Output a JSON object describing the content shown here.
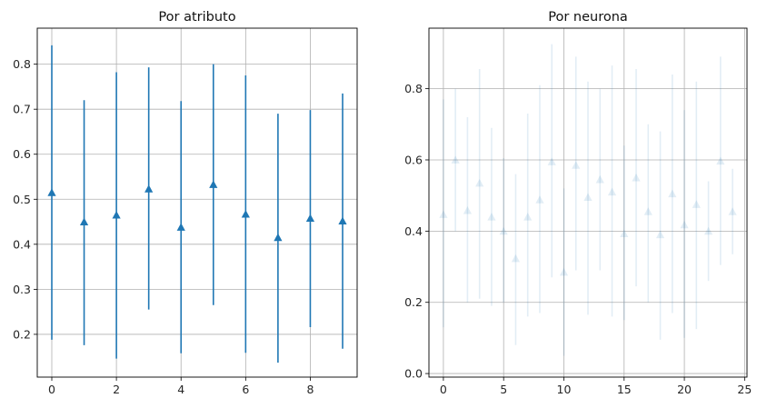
{
  "chart_data": [
    {
      "type": "errorbar",
      "title": "Por atributo",
      "xlabel": "",
      "ylabel": "",
      "xlim": [
        -0.45,
        9.45
      ],
      "ylim": [
        0.105,
        0.88
      ],
      "xticks": [
        0,
        2,
        4,
        6,
        8
      ],
      "yticks": [
        0.2,
        0.3,
        0.4,
        0.5,
        0.6,
        0.7,
        0.8
      ],
      "grid": true,
      "marker": "triangle-up",
      "color": "#1f77b4",
      "alpha": 1.0,
      "x": [
        0,
        1,
        2,
        3,
        4,
        5,
        6,
        7,
        8,
        9
      ],
      "y": [
        0.515,
        0.45,
        0.465,
        0.523,
        0.438,
        0.533,
        0.467,
        0.415,
        0.458,
        0.452
      ],
      "err_low": [
        0.188,
        0.176,
        0.146,
        0.255,
        0.158,
        0.265,
        0.159,
        0.137,
        0.216,
        0.168
      ],
      "err_high": [
        0.842,
        0.72,
        0.782,
        0.793,
        0.718,
        0.8,
        0.775,
        0.69,
        0.698,
        0.735
      ]
    },
    {
      "type": "errorbar",
      "title": "Por neurona",
      "xlabel": "",
      "ylabel": "",
      "xlim": [
        -1.2,
        25.2
      ],
      "ylim": [
        -0.01,
        0.97
      ],
      "xticks": [
        0,
        5,
        10,
        15,
        20,
        25
      ],
      "yticks": [
        0.0,
        0.2,
        0.4,
        0.6,
        0.8
      ],
      "grid": true,
      "marker": "triangle-up",
      "color": "#1f77b4",
      "alpha": 0.13,
      "x": [
        0,
        1,
        2,
        3,
        4,
        5,
        6,
        7,
        8,
        9,
        10,
        11,
        12,
        13,
        14,
        15,
        16,
        17,
        18,
        19,
        20,
        21,
        22,
        23,
        24
      ],
      "y": [
        0.447,
        0.6,
        0.458,
        0.535,
        0.44,
        0.4,
        0.323,
        0.44,
        0.488,
        0.595,
        0.285,
        0.585,
        0.495,
        0.545,
        0.51,
        0.393,
        0.55,
        0.455,
        0.39,
        0.505,
        0.418,
        0.475,
        0.4,
        0.597,
        0.455
      ],
      "err_low": [
        0.13,
        0.4,
        0.2,
        0.21,
        0.19,
        0.2,
        0.08,
        0.16,
        0.17,
        0.27,
        0.05,
        0.29,
        0.165,
        0.29,
        0.16,
        0.15,
        0.245,
        0.2,
        0.095,
        0.17,
        0.1,
        0.125,
        0.26,
        0.305,
        0.335
      ],
      "err_high": [
        0.77,
        0.8,
        0.72,
        0.855,
        0.69,
        0.605,
        0.56,
        0.73,
        0.81,
        0.925,
        0.52,
        0.89,
        0.82,
        0.8,
        0.865,
        0.64,
        0.855,
        0.7,
        0.68,
        0.84,
        0.74,
        0.82,
        0.54,
        0.89,
        0.575
      ]
    }
  ]
}
